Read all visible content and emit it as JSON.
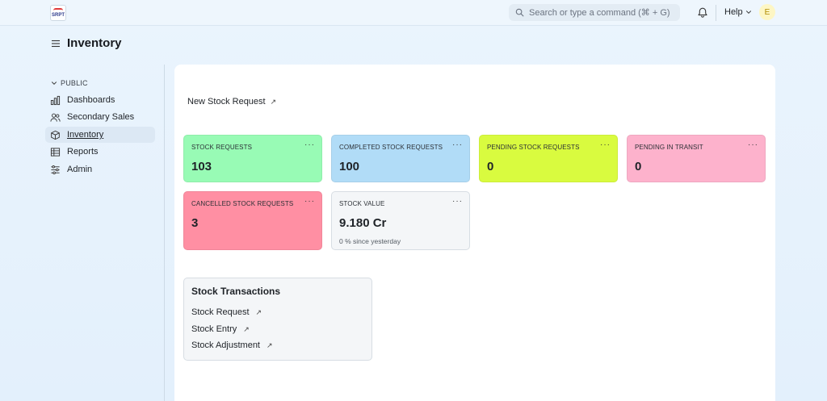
{
  "navbar": {
    "logo_text": "SRPT",
    "search_placeholder": "Search or type a command (⌘ + G)",
    "help_label": "Help",
    "avatar_initial": "E"
  },
  "page": {
    "title": "Inventory"
  },
  "sidebar": {
    "section_label": "PUBLIC",
    "items": [
      {
        "label": "Dashboards",
        "icon": "bar-chart-icon"
      },
      {
        "label": "Secondary Sales",
        "icon": "users-icon"
      },
      {
        "label": "Inventory",
        "icon": "box-icon",
        "active": true
      },
      {
        "label": "Reports",
        "icon": "table-icon"
      },
      {
        "label": "Admin",
        "icon": "sliders-icon"
      }
    ]
  },
  "shortcuts": [
    {
      "label": "New Stock Request"
    }
  ],
  "cards": [
    {
      "title": "STOCK REQUESTS",
      "value": "103",
      "color": "#98fbb5"
    },
    {
      "title": "COMPLETED STOCK REQUESTS",
      "value": "100",
      "color": "#b1dcf7"
    },
    {
      "title": "PENDING STOCK REQUESTS",
      "value": "0",
      "color": "#d9fb3f"
    },
    {
      "title": "PENDING IN TRANSIT",
      "value": "0",
      "color": "#fdb2cc"
    },
    {
      "title": "CANCELLED STOCK REQUESTS",
      "value": "3",
      "color": "#ff8fa3"
    },
    {
      "title": "STOCK VALUE",
      "value": "9.180 Cr",
      "subtitle": "0 % since yesterday",
      "color": "#f4f6f8"
    }
  ],
  "card_menu_glyph": "···",
  "links_card": {
    "title": "Stock Transactions",
    "links": [
      {
        "label": "Stock Request"
      },
      {
        "label": "Stock Entry"
      },
      {
        "label": "Stock Adjustment"
      }
    ]
  }
}
